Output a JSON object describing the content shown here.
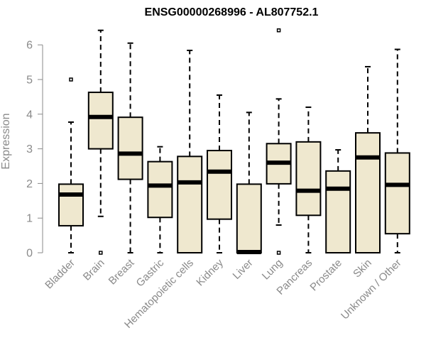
{
  "chart_data": {
    "type": "box",
    "title": "ENSG00000268996 - AL807752.1",
    "xlabel": "",
    "ylabel": "Expression",
    "ylim": [
      0,
      6.5
    ],
    "yticks": [
      0,
      1,
      2,
      3,
      4,
      5,
      6
    ],
    "box_fill": "#efe8cf",
    "outline_color": "#000000",
    "axis_color": "#8a8a8a",
    "categories": [
      "Bladder",
      "Brain",
      "Breast",
      "Gastric",
      "Hematopoietic cells",
      "Kidney",
      "Liver",
      "Lung",
      "Pancreas",
      "Prostate",
      "Skin",
      "Unknown / Other"
    ],
    "boxes": [
      {
        "min": 0.0,
        "q1": 0.78,
        "median": 1.68,
        "q3": 1.98,
        "max": 3.77,
        "outliers": [
          5.0
        ]
      },
      {
        "min": 1.05,
        "q1": 3.0,
        "median": 3.92,
        "q3": 4.63,
        "max": 6.42,
        "outliers": [
          0.0
        ]
      },
      {
        "min": 0.0,
        "q1": 2.12,
        "median": 2.86,
        "q3": 3.91,
        "max": 6.05,
        "outliers": []
      },
      {
        "min": 0.0,
        "q1": 1.02,
        "median": 1.94,
        "q3": 2.63,
        "max": 3.06,
        "outliers": []
      },
      {
        "min": 0.0,
        "q1": 0.0,
        "median": 2.03,
        "q3": 2.78,
        "max": 5.84,
        "outliers": []
      },
      {
        "min": 0.0,
        "q1": 0.97,
        "median": 2.34,
        "q3": 2.95,
        "max": 4.55,
        "outliers": []
      },
      {
        "min": 0.0,
        "q1": 0.0,
        "median": 0.02,
        "q3": 1.98,
        "max": 4.05,
        "outliers": []
      },
      {
        "min": 0.8,
        "q1": 1.99,
        "median": 2.6,
        "q3": 3.15,
        "max": 4.44,
        "outliers": [
          6.42,
          0.0
        ]
      },
      {
        "min": 0.0,
        "q1": 1.08,
        "median": 1.79,
        "q3": 3.2,
        "max": 4.2,
        "outliers": []
      },
      {
        "min": 0.0,
        "q1": 0.0,
        "median": 1.85,
        "q3": 2.36,
        "max": 2.97,
        "outliers": []
      },
      {
        "min": 0.0,
        "q1": 0.0,
        "median": 2.75,
        "q3": 3.46,
        "max": 5.37,
        "outliers": []
      },
      {
        "min": 0.0,
        "q1": 0.55,
        "median": 1.96,
        "q3": 2.88,
        "max": 5.87,
        "outliers": []
      }
    ]
  }
}
